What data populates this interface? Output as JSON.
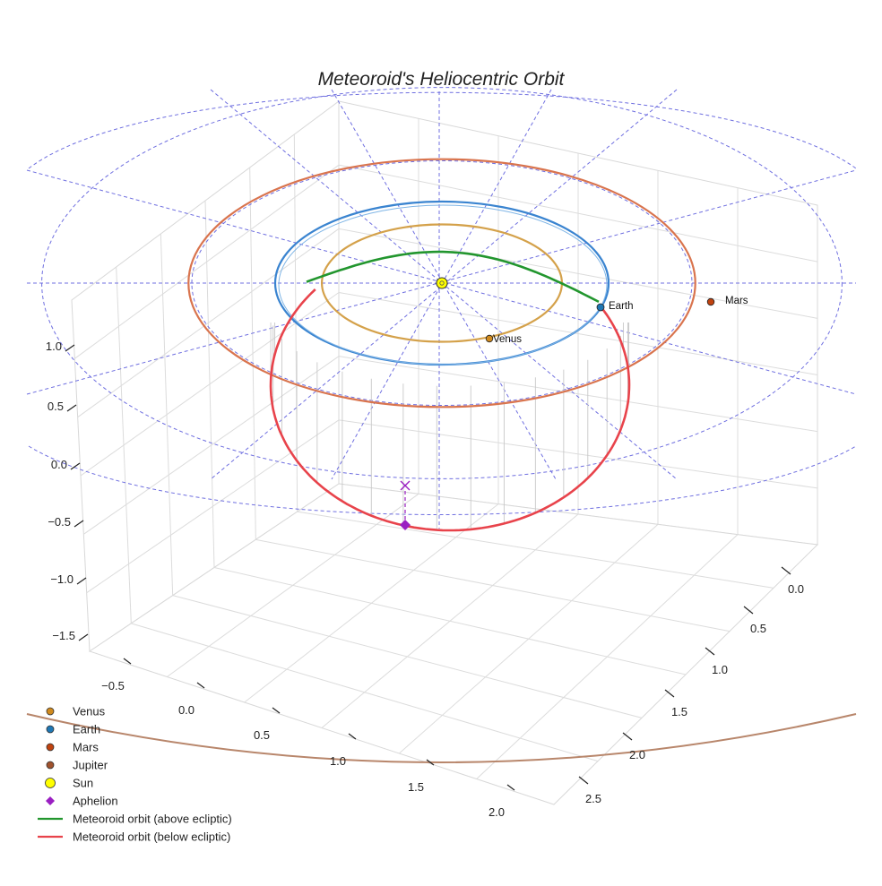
{
  "chart_data": {
    "type": "3d-line",
    "title": "Meteoroid's Heliocentric Orbit",
    "axes": {
      "x": {
        "label": "",
        "ticks": [
          "0.0",
          "0.5",
          "1.0",
          "1.5",
          "2.0",
          "2.5"
        ],
        "range": [
          -0.1,
          2.7
        ]
      },
      "y": {
        "label": "",
        "ticks": [
          "−0.5",
          "0.0",
          "0.5",
          "1.0",
          "1.5",
          "2.0"
        ],
        "range": [
          -0.8,
          2.2
        ]
      },
      "z": {
        "label": "",
        "ticks": [
          "−1.5",
          "−1.0",
          "−0.5",
          "0.0",
          "0.5",
          "1.0"
        ],
        "range": [
          -1.7,
          1.2
        ]
      }
    },
    "bodies": [
      {
        "name": "Venus",
        "label": "Venus",
        "orbit_radius_au": 0.72,
        "color": "#d4a14a",
        "marker_color": "#d08a1e"
      },
      {
        "name": "Earth",
        "label": "Earth",
        "orbit_radius_au": 1.0,
        "color": "#3a84d0",
        "marker_color": "#1f77b4"
      },
      {
        "name": "Mars",
        "label": "Mars",
        "orbit_radius_au": 1.52,
        "color": "#d9744e",
        "marker_color": "#c0420f"
      },
      {
        "name": "Jupiter",
        "label": "",
        "orbit_radius_au": 5.2,
        "color": "#b8866b",
        "marker_color": "#a0522d"
      },
      {
        "name": "Sun",
        "label": "",
        "color": "#ffff00"
      }
    ],
    "meteoroid": {
      "above_ecliptic_color": "#22962e",
      "below_ecliptic_color": "#e8434b",
      "aphelion_color": "#9a1fc2"
    },
    "reference_circles_au": [
      1.5,
      2.4
    ],
    "legend": {
      "position": "bottom-left",
      "entries": [
        {
          "label": "Venus",
          "kind": "dot",
          "color": "#d08a1e"
        },
        {
          "label": "Earth",
          "kind": "dot",
          "color": "#1f77b4"
        },
        {
          "label": "Mars",
          "kind": "dot",
          "color": "#c0420f"
        },
        {
          "label": "Jupiter",
          "kind": "dot",
          "color": "#a0522d"
        },
        {
          "label": "Sun",
          "kind": "sun",
          "color": "#ffff00"
        },
        {
          "label": "Aphelion",
          "kind": "diamond",
          "color": "#9a1fc2"
        },
        {
          "label": "Meteoroid orbit (above ecliptic)",
          "kind": "line",
          "color": "#22962e"
        },
        {
          "label": "Meteoroid orbit (below ecliptic)",
          "kind": "line",
          "color": "#e8434b"
        }
      ]
    }
  }
}
